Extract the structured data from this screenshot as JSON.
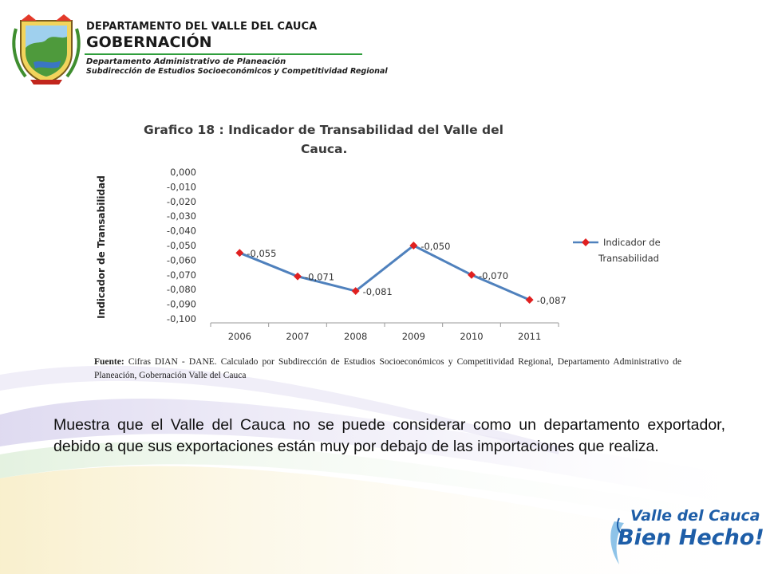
{
  "header": {
    "line1": "DEPARTAMENTO DEL VALLE DEL CAUCA",
    "line2": "GOBERNACIÓN",
    "line3": "Departamento  Administrativo de Planeación",
    "line4": "Subdirección de Estudios Socioeconómicos y Competitividad Regional"
  },
  "chart_data": {
    "type": "line",
    "title": "Grafico 18 : Indicador de Transabilidad del Valle del Cauca.",
    "title_line1": "Grafico 18 : Indicador de Transabilidad del Valle del",
    "title_line2": "Cauca.",
    "ylabel": "Indicador de Transabilidad",
    "xlabel": "",
    "categories": [
      "2006",
      "2007",
      "2008",
      "2009",
      "2010",
      "2011"
    ],
    "series": [
      {
        "name": "Indicador de Transabilidad",
        "values": [
          -0.055,
          -0.071,
          -0.081,
          -0.05,
          -0.07,
          -0.087
        ],
        "data_labels": [
          "-0,055",
          "-0,071",
          "-0,081",
          "-0,050",
          "-0,070",
          "-0,087"
        ],
        "color": "#4f81bd",
        "marker_color": "#e02020"
      }
    ],
    "ylim": [
      -0.1,
      0
    ],
    "yticks": [
      "0,000",
      "-0,010",
      "-0,020",
      "-0,030",
      "-0,040",
      "-0,050",
      "-0,060",
      "-0,070",
      "-0,080",
      "-0,090",
      "-0,100"
    ],
    "legend_line1": "Indicador de",
    "legend_line2": "Transabilidad",
    "legend_position": "right",
    "grid": false
  },
  "source": {
    "label": "Fuente:",
    "text": "Cifras DIAN - DANE. Calculado por Subdirección de Estudios Socioeconómicos y Competitividad Regional, Departamento Administrativo de Planeación, Gobernación Valle del Cauca"
  },
  "body": {
    "text": "Muestra que el Valle del Cauca no se puede considerar como un departamento exportador, debido a que sus exportaciones están muy por debajo de las importaciones que realiza."
  },
  "slogan": {
    "line1": "Valle del Cauca",
    "line2": "Bien Hecho!"
  },
  "colors": {
    "header_rule": "#2f9e3c",
    "slogan": "#1e5ea8",
    "line": "#4f81bd",
    "marker": "#e02020"
  }
}
